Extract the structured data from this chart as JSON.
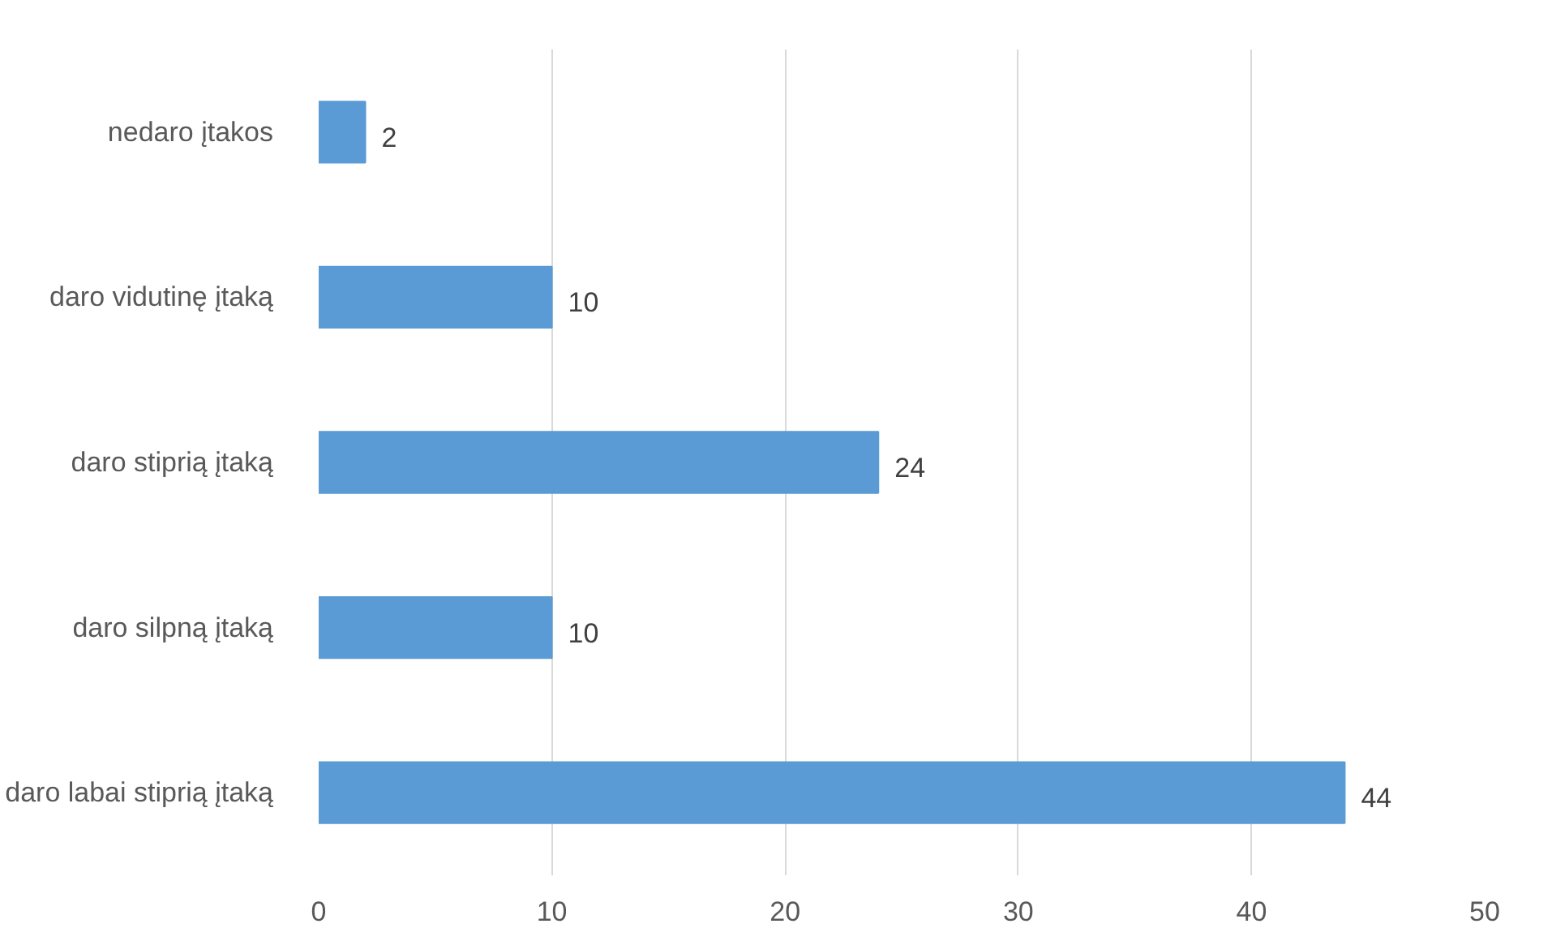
{
  "chart_data": {
    "type": "bar",
    "orientation": "horizontal",
    "categories": [
      "nedaro įtakos",
      "daro vidutinę įtaką",
      "daro stiprią įtaką",
      "daro silpną įtaką",
      "daro labai stiprią įtaką"
    ],
    "values": [
      2,
      10,
      24,
      10,
      44
    ],
    "color": "#5b9bd5",
    "xlim": [
      0,
      50
    ],
    "xticks": [
      0,
      10,
      20,
      30,
      40,
      50
    ],
    "grid": "x",
    "data_labels": true
  }
}
